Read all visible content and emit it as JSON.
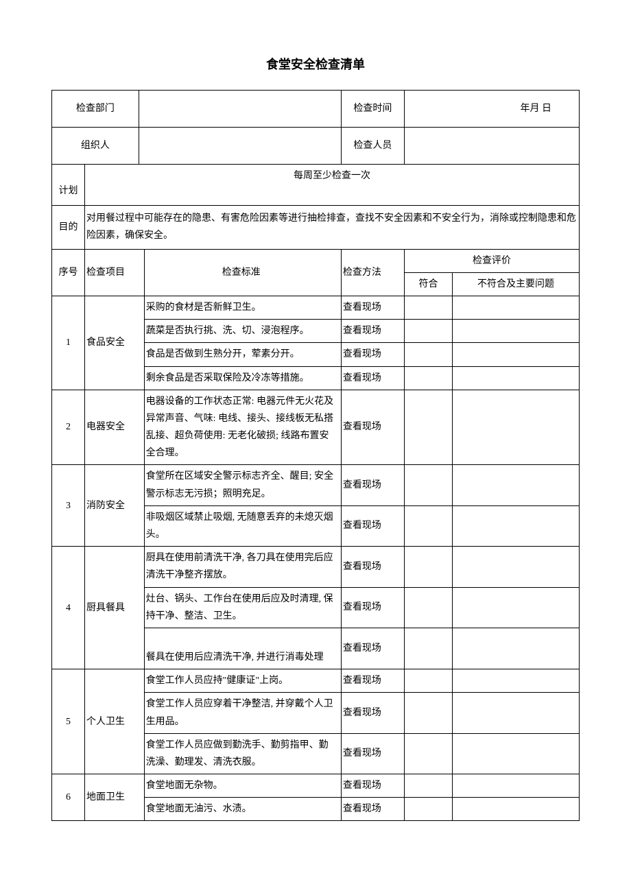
{
  "title": "食堂安全检查清单",
  "header": {
    "dept_label": "检查部门",
    "time_label": "检查时间",
    "date_text": "年月           日",
    "organizer_label": "组织人",
    "inspector_label": "检查人员"
  },
  "plan": {
    "label": "计划",
    "content": "每周至少检查一次"
  },
  "purpose": {
    "label": "目的",
    "content": "对用餐过程中可能存在的隐患、有害危险因素等进行抽检排查，查找不安全因素和不安全行为，消除或控制隐患和危险因素，确保安全。"
  },
  "table_headers": {
    "seq": "序号",
    "item": "检查项目",
    "standard": "检查标准",
    "method": "检查方法",
    "eval": "检查评价",
    "conform": "符合",
    "nonconform": "不符合及主要问题"
  },
  "rows": [
    {
      "seq": "1",
      "item": "食品安全",
      "standards": [
        {
          "text": "采购的食材是否新鲜卫生。",
          "method": "查看现场"
        },
        {
          "text": "蔬菜是否执行挑、洗、切、浸泡程序。",
          "method": "查看现场"
        },
        {
          "text": "食品是否做到生熟分开，荤素分开。",
          "method": "查看现场"
        },
        {
          "text": "剩余食品是否采取保险及冷冻等措施。",
          "method": "查看现场"
        }
      ]
    },
    {
      "seq": "2",
      "item": "电器安全",
      "standards": [
        {
          "text": "电器设备的工作状态正常: 电器元件无火花及异常声音、气味: 电线、接头、接线板无私搭乱接、超负荷使用: 无老化破损; 线路布置安全合理。",
          "method": "查看现场"
        }
      ]
    },
    {
      "seq": "3",
      "item": "消防安全",
      "standards": [
        {
          "text": "食堂所在区域安全警示标志齐全、醒目; 安全警示标志无污损；照明充足。",
          "method": "查看现场"
        },
        {
          "text": "非吸烟区域禁止吸烟, 无随意丢弃的未熄灭烟头。",
          "method": "查看现场"
        }
      ]
    },
    {
      "seq": "4",
      "item": "厨具餐具",
      "standards": [
        {
          "text": "厨具在使用前清洗干净, 各刀具在使用完后应清洗干净整齐摆放。",
          "method": "查看现场"
        },
        {
          "text": "灶台、锅头、工作台在使用后应及时清理, 保持干净、整洁、卫生。",
          "method": "查看现场"
        },
        {
          "text": "餐具在使用后应清洗干净, 并进行消毒处理",
          "method": "查看现场",
          "bottom": true
        }
      ]
    },
    {
      "seq": "5",
      "item": "个人卫生",
      "standards": [
        {
          "text": "食堂工作人员应持\"健康证\"上岗。",
          "method": "查看现场"
        },
        {
          "text": "食堂工作人员应穿着干净整洁, 并穿戴个人卫生用品。",
          "method": "查看现场"
        },
        {
          "text": "食堂工作人员应做到勤洗手、勤剪指甲、勤洗澡、勤理发、清洗衣服。",
          "method": "查看现场"
        }
      ]
    },
    {
      "seq": "6",
      "item": "地面卫生",
      "standards": [
        {
          "text": "食堂地面无杂物。",
          "method": "查看现场"
        },
        {
          "text": "食堂地面无油污、水渍。",
          "method": "查看现场"
        }
      ]
    }
  ]
}
